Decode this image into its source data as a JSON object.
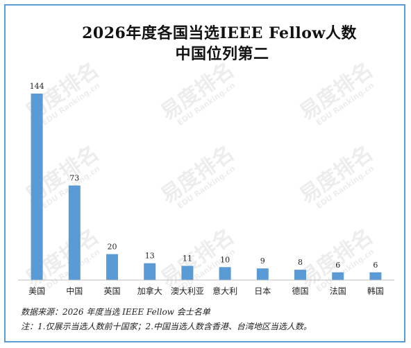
{
  "chart_data": {
    "type": "bar",
    "title": "2026年度各国当选IEEE Fellow人数",
    "subtitle": "中国位列第二",
    "categories": [
      "美国",
      "中国",
      "英国",
      "加拿大",
      "澳大利亚",
      "意大利",
      "日本",
      "德国",
      "法国",
      "韩国"
    ],
    "values": [
      144,
      73,
      20,
      13,
      11,
      10,
      9,
      8,
      6,
      6
    ],
    "xlabel": "",
    "ylabel": "",
    "ylim": [
      0,
      144
    ],
    "grid": false,
    "legend": "none",
    "bar_color": "#5b9bd5",
    "source": "数据来源：2026 年度当选 IEEE Fellow 会士名单",
    "note": "注：1.仅展示当选人数前十国家；2.中国当选人数含香港、台湾地区当选人数。"
  },
  "watermark": "易度排名 EDU Ranking.cn"
}
